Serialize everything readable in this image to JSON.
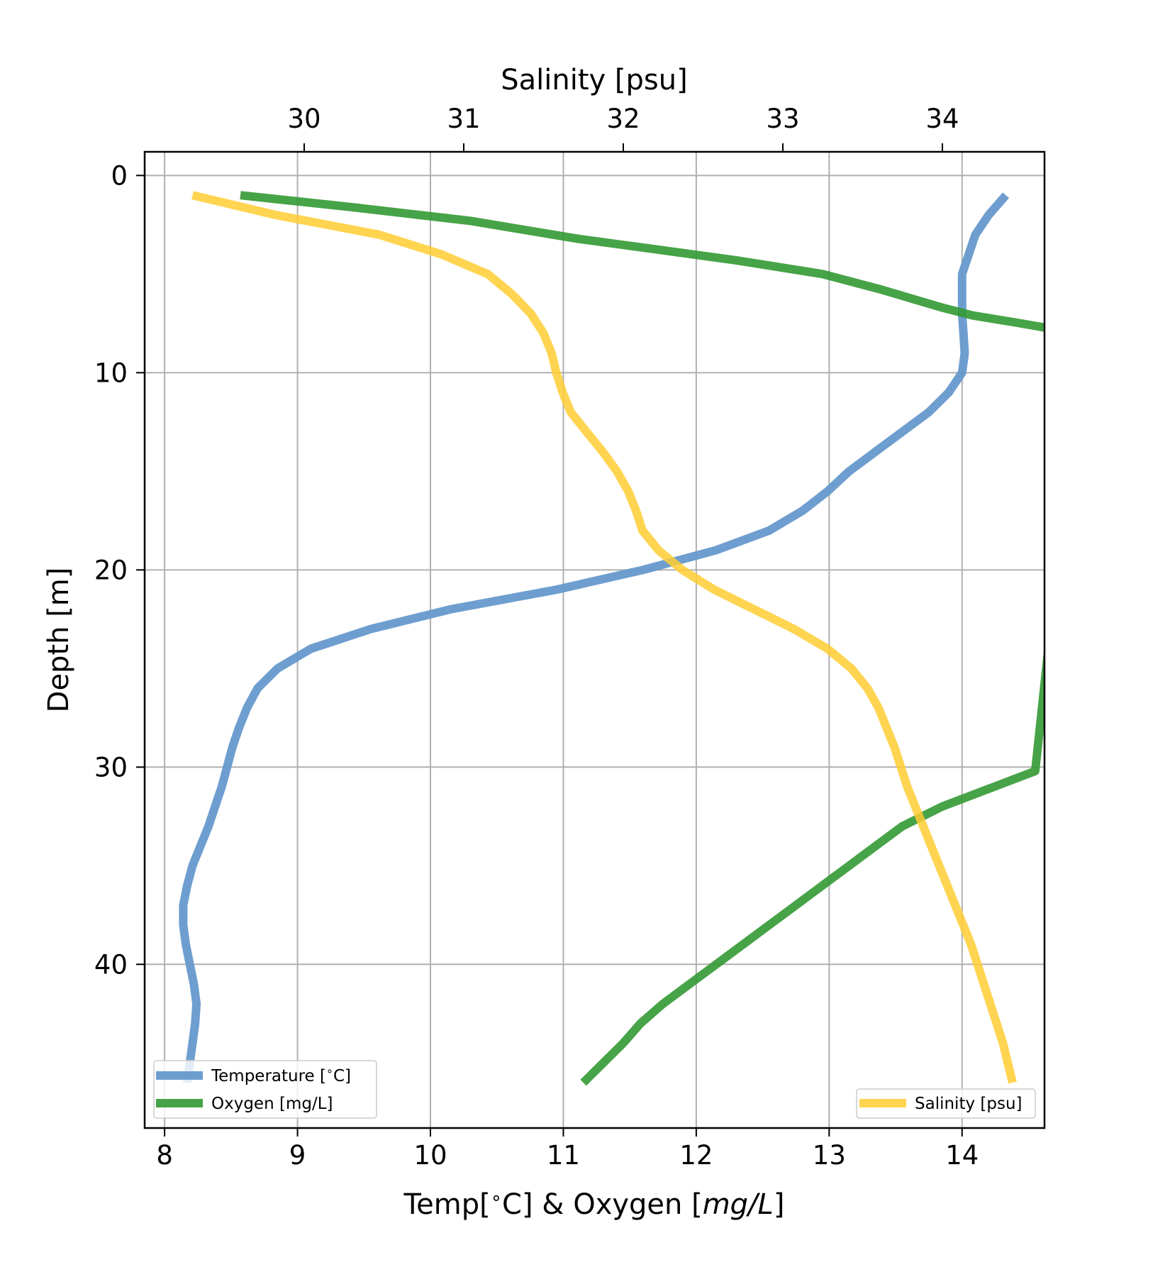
{
  "chart_data": {
    "type": "line",
    "title": "",
    "x_bottom": {
      "label": "Temp[$^\\circ$C] & Oxygen [$mg/L$]",
      "label_parts": [
        "Temp[",
        "∘",
        "C] & Oxygen [",
        "mg/L",
        "]"
      ],
      "range": [
        7.85,
        14.62
      ],
      "ticks": [
        8,
        9,
        10,
        11,
        12,
        13,
        14
      ],
      "tick_labels": [
        "8",
        "9",
        "10",
        "11",
        "12",
        "13",
        "14"
      ]
    },
    "x_top": {
      "label": "Salinity [psu]",
      "range": [
        29.0,
        34.64
      ],
      "ticks": [
        30,
        31,
        32,
        33,
        34
      ],
      "tick_labels": [
        "30",
        "31",
        "32",
        "33",
        "34"
      ]
    },
    "y": {
      "label": "Depth [m]",
      "range": [
        -1.2,
        48.3
      ],
      "inverted": true,
      "ticks": [
        0,
        10,
        20,
        30,
        40
      ],
      "tick_labels": [
        "0",
        "10",
        "20",
        "30",
        "40"
      ]
    },
    "grid": true,
    "series": [
      {
        "name": "Temperature [$^\\circ$C]",
        "axis": "bottom",
        "color": "#6699cc",
        "points": [
          [
            14.33,
            1
          ],
          [
            14.2,
            2
          ],
          [
            14.1,
            3
          ],
          [
            14.05,
            4
          ],
          [
            14.0,
            5
          ],
          [
            14.0,
            6
          ],
          [
            14.0,
            7
          ],
          [
            14.01,
            8
          ],
          [
            14.02,
            9
          ],
          [
            14.0,
            10
          ],
          [
            13.9,
            11
          ],
          [
            13.75,
            12
          ],
          [
            13.55,
            13
          ],
          [
            13.35,
            14
          ],
          [
            13.15,
            15
          ],
          [
            12.99,
            16
          ],
          [
            12.8,
            17
          ],
          [
            12.55,
            18
          ],
          [
            12.15,
            19
          ],
          [
            11.6,
            20
          ],
          [
            10.95,
            21
          ],
          [
            10.15,
            22
          ],
          [
            9.55,
            23
          ],
          [
            9.1,
            24
          ],
          [
            8.85,
            25
          ],
          [
            8.7,
            26
          ],
          [
            8.62,
            27
          ],
          [
            8.56,
            28
          ],
          [
            8.51,
            29
          ],
          [
            8.47,
            30
          ],
          [
            8.43,
            31
          ],
          [
            8.38,
            32
          ],
          [
            8.33,
            33
          ],
          [
            8.27,
            34
          ],
          [
            8.21,
            35
          ],
          [
            8.17,
            36
          ],
          [
            8.14,
            37
          ],
          [
            8.14,
            38
          ],
          [
            8.16,
            39
          ],
          [
            8.19,
            40
          ],
          [
            8.22,
            41
          ],
          [
            8.24,
            42
          ],
          [
            8.23,
            43
          ],
          [
            8.21,
            44
          ],
          [
            8.19,
            45
          ],
          [
            8.17,
            46
          ]
        ]
      },
      {
        "name": "Oxygen [mg/L]",
        "axis": "bottom",
        "color": "#339933",
        "points": [
          [
            8.57,
            1
          ],
          [
            9.4,
            1.6
          ],
          [
            10.3,
            2.3
          ],
          [
            11.1,
            3.2
          ],
          [
            12.3,
            4.3
          ],
          [
            12.95,
            5
          ],
          [
            13.4,
            5.8
          ],
          [
            13.85,
            6.7
          ],
          [
            14.08,
            7.1
          ],
          [
            14.4,
            7.45
          ],
          [
            14.7,
            7.8
          ],
          [
            14.9,
            8.2
          ],
          [
            14.55,
            30.2
          ],
          [
            14.2,
            31.1
          ],
          [
            13.85,
            32
          ],
          [
            13.55,
            33
          ],
          [
            13.35,
            34
          ],
          [
            13.15,
            35
          ],
          [
            12.95,
            36
          ],
          [
            12.75,
            37
          ],
          [
            12.55,
            38
          ],
          [
            12.35,
            39
          ],
          [
            12.15,
            40
          ],
          [
            11.95,
            41
          ],
          [
            11.75,
            42
          ],
          [
            11.58,
            43
          ],
          [
            11.45,
            44
          ],
          [
            11.3,
            45
          ],
          [
            11.15,
            46
          ]
        ]
      },
      {
        "name": "Salinity [psu]",
        "axis": "top",
        "color": "#ffcc33",
        "points": [
          [
            29.3,
            1
          ],
          [
            29.82,
            2
          ],
          [
            30.47,
            3
          ],
          [
            30.86,
            4
          ],
          [
            31.15,
            5
          ],
          [
            31.3,
            6
          ],
          [
            31.42,
            7
          ],
          [
            31.5,
            8
          ],
          [
            31.55,
            9
          ],
          [
            31.58,
            10
          ],
          [
            31.62,
            11
          ],
          [
            31.67,
            12
          ],
          [
            31.77,
            13
          ],
          [
            31.87,
            14
          ],
          [
            31.96,
            15
          ],
          [
            32.03,
            16
          ],
          [
            32.08,
            17
          ],
          [
            32.12,
            18
          ],
          [
            32.22,
            19
          ],
          [
            32.37,
            20
          ],
          [
            32.57,
            21
          ],
          [
            32.82,
            22
          ],
          [
            33.07,
            23
          ],
          [
            33.28,
            24
          ],
          [
            33.43,
            25
          ],
          [
            33.53,
            26
          ],
          [
            33.6,
            27
          ],
          [
            33.65,
            28
          ],
          [
            33.7,
            29
          ],
          [
            33.74,
            30
          ],
          [
            33.78,
            31
          ],
          [
            33.83,
            32
          ],
          [
            33.88,
            33
          ],
          [
            33.93,
            34
          ],
          [
            33.98,
            35
          ],
          [
            34.03,
            36
          ],
          [
            34.08,
            37
          ],
          [
            34.13,
            38
          ],
          [
            34.18,
            39
          ],
          [
            34.22,
            40
          ],
          [
            34.26,
            41
          ],
          [
            34.3,
            42
          ],
          [
            34.34,
            43
          ],
          [
            34.38,
            44
          ],
          [
            34.41,
            45
          ],
          [
            34.44,
            46
          ]
        ]
      }
    ],
    "legends": [
      {
        "placement": "lower-left",
        "entries": [
          "Temperature [$^\\circ$C]",
          "Oxygen [mg/L]"
        ]
      },
      {
        "placement": "lower-right",
        "entries": [
          "Salinity [psu]"
        ]
      }
    ]
  }
}
